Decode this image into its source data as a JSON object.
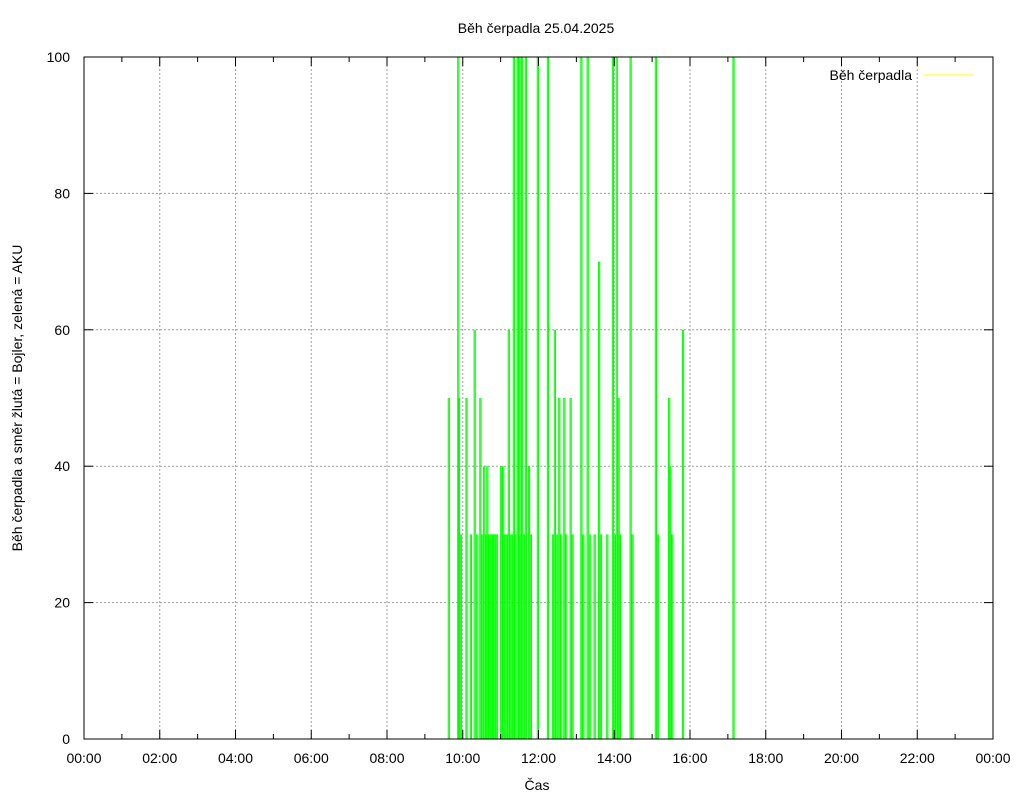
{
  "chart_data": {
    "type": "bar",
    "title": "Běh čerpadla 25.04.2025",
    "xlabel": "Čas",
    "ylabel": "Běh čerpadla a směr žlutá = Bojler, zelená = AKU",
    "xlim_hours": [
      0,
      24
    ],
    "ylim": [
      0,
      100
    ],
    "x_tick_labels": [
      "00:00",
      "02:00",
      "04:00",
      "06:00",
      "08:00",
      "10:00",
      "12:00",
      "14:00",
      "16:00",
      "18:00",
      "20:00",
      "22:00",
      "00:00"
    ],
    "y_tick_labels": [
      "0",
      "20",
      "40",
      "60",
      "80",
      "100"
    ],
    "grid": true,
    "legend": {
      "position": "top-right",
      "entries": [
        {
          "label": "Běh čerpadla",
          "color": "#ffff00"
        }
      ]
    },
    "series": [
      {
        "name": "Běh čerpadla",
        "color": "#00ff00",
        "points": [
          [
            "09:37",
            50
          ],
          [
            "09:52",
            100
          ],
          [
            "09:53",
            50
          ],
          [
            "09:54",
            30
          ],
          [
            "09:56",
            30
          ],
          [
            "10:05",
            50
          ],
          [
            "10:12",
            30
          ],
          [
            "10:18",
            60
          ],
          [
            "10:22",
            30
          ],
          [
            "10:27",
            50
          ],
          [
            "10:30",
            30
          ],
          [
            "10:33",
            40
          ],
          [
            "10:36",
            30
          ],
          [
            "10:38",
            40
          ],
          [
            "10:41",
            30
          ],
          [
            "10:43",
            30
          ],
          [
            "10:45",
            30
          ],
          [
            "10:47",
            30
          ],
          [
            "10:49",
            30
          ],
          [
            "10:51",
            30
          ],
          [
            "10:53",
            30
          ],
          [
            "11:00",
            40
          ],
          [
            "11:03",
            40
          ],
          [
            "11:06",
            30
          ],
          [
            "11:09",
            30
          ],
          [
            "11:12",
            60
          ],
          [
            "11:14",
            30
          ],
          [
            "11:17",
            30
          ],
          [
            "11:20",
            100
          ],
          [
            "11:22",
            30
          ],
          [
            "11:26",
            100
          ],
          [
            "11:29",
            100
          ],
          [
            "11:31",
            30
          ],
          [
            "11:33",
            100
          ],
          [
            "11:36",
            30
          ],
          [
            "11:39",
            100
          ],
          [
            "11:44",
            40
          ],
          [
            "11:47",
            30
          ],
          [
            "11:58",
            100
          ],
          [
            "12:14",
            100
          ],
          [
            "12:22",
            30
          ],
          [
            "12:25",
            60
          ],
          [
            "12:28",
            30
          ],
          [
            "12:32",
            50
          ],
          [
            "12:35",
            30
          ],
          [
            "12:40",
            50
          ],
          [
            "12:43",
            30
          ],
          [
            "12:50",
            50
          ],
          [
            "12:53",
            30
          ],
          [
            "13:07",
            100
          ],
          [
            "13:10",
            30
          ],
          [
            "13:17",
            100
          ],
          [
            "13:21",
            30
          ],
          [
            "13:28",
            30
          ],
          [
            "13:35",
            70
          ],
          [
            "13:38",
            30
          ],
          [
            "13:48",
            30
          ],
          [
            "13:57",
            100
          ],
          [
            "14:00",
            30
          ],
          [
            "14:03",
            100
          ],
          [
            "14:06",
            50
          ],
          [
            "14:08",
            30
          ],
          [
            "14:25",
            100
          ],
          [
            "14:28",
            30
          ],
          [
            "15:05",
            100
          ],
          [
            "15:08",
            30
          ],
          [
            "15:26",
            50
          ],
          [
            "15:28",
            40
          ],
          [
            "15:31",
            30
          ],
          [
            "15:48",
            60
          ],
          [
            "17:08",
            100
          ]
        ]
      }
    ]
  }
}
